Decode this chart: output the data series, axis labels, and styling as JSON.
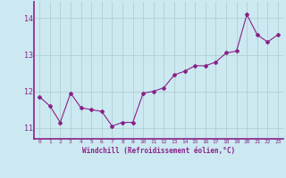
{
  "x": [
    0,
    1,
    2,
    3,
    4,
    5,
    6,
    7,
    8,
    9,
    10,
    11,
    12,
    13,
    14,
    15,
    16,
    17,
    18,
    19,
    20,
    21,
    22,
    23
  ],
  "y": [
    11.85,
    11.6,
    11.15,
    11.95,
    11.55,
    11.5,
    11.45,
    11.05,
    11.15,
    11.15,
    11.95,
    12.0,
    12.1,
    12.45,
    12.55,
    12.7,
    12.7,
    12.8,
    13.05,
    13.1,
    14.1,
    13.55,
    13.35,
    13.55
  ],
  "line_color": "#882288",
  "marker": "D",
  "marker_size": 2.0,
  "bg_color": "#cce8f0",
  "grid_color": "#aacccc",
  "xlabel": "Windchill (Refroidissement éolien,°C)",
  "xlabel_color": "#882288",
  "tick_color": "#882288",
  "ylim": [
    10.7,
    14.45
  ],
  "yticks": [
    11,
    12,
    13,
    14
  ],
  "xlim": [
    -0.5,
    23.5
  ],
  "xticks": [
    0,
    1,
    2,
    3,
    4,
    5,
    6,
    7,
    8,
    9,
    10,
    11,
    12,
    13,
    14,
    15,
    16,
    17,
    18,
    19,
    20,
    21,
    22,
    23
  ]
}
